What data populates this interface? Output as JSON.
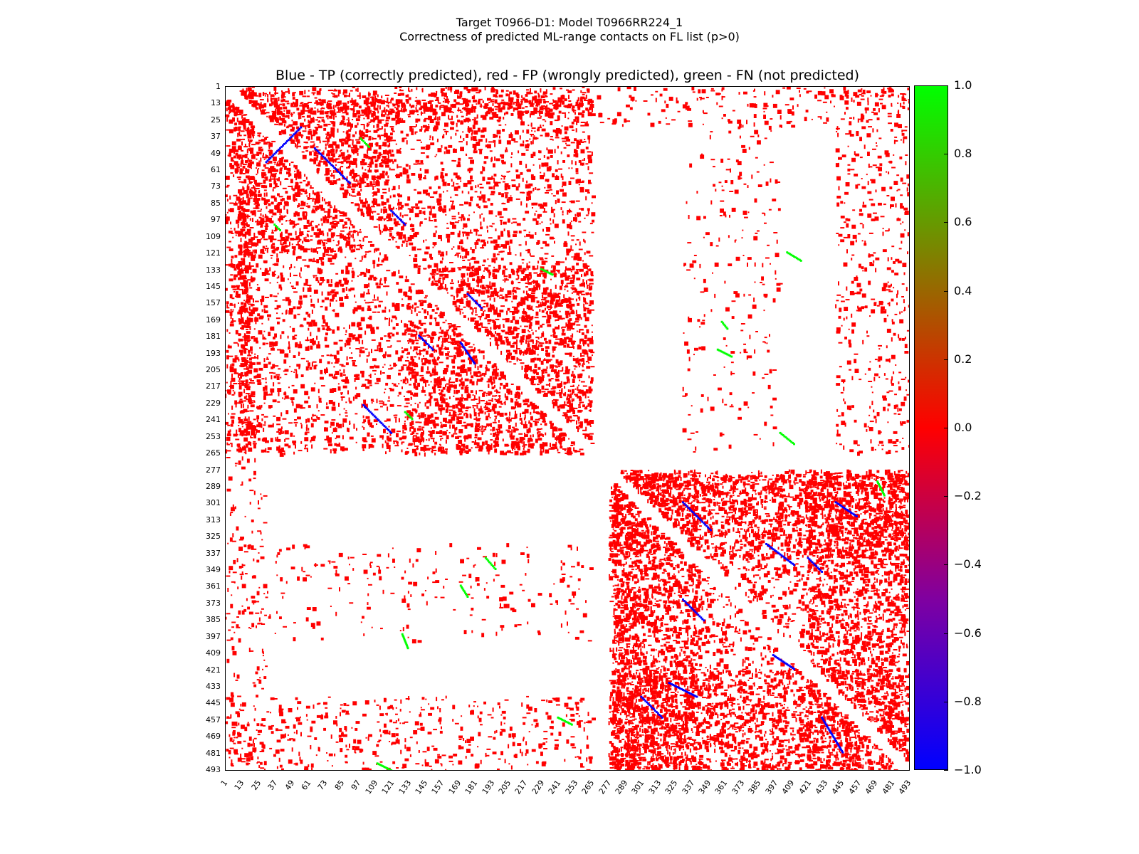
{
  "header": {
    "line1": "Target T0966-D1: Model T0966RR224_1",
    "line2": "Correctness of predicted ML-range contacts on FL list (p>0)"
  },
  "chart_data": {
    "type": "heatmap",
    "title": "Blue - TP (correctly predicted), red - FP (wrongly predicted), green - FN (not predicted)",
    "n_residues": 493,
    "tick_labels": [
      "1",
      "13",
      "25",
      "37",
      "49",
      "61",
      "73",
      "85",
      "97",
      "109",
      "121",
      "133",
      "145",
      "157",
      "169",
      "181",
      "193",
      "205",
      "217",
      "229",
      "241",
      "253",
      "265",
      "277",
      "289",
      "301",
      "313",
      "325",
      "337",
      "349",
      "361",
      "373",
      "385",
      "397",
      "409",
      "421",
      "433",
      "445",
      "457",
      "469",
      "481",
      "493"
    ],
    "colorbar": {
      "ticks": [
        "1.0",
        "0.8",
        "0.6",
        "0.4",
        "0.2",
        "0.0",
        "−0.2",
        "−0.4",
        "−0.6",
        "−0.8",
        "−1.0"
      ],
      "range": [
        -1.0,
        1.0
      ],
      "colors": {
        "tp": "#0000ff",
        "fp": "#ff0000",
        "fn": "#00ff00"
      }
    },
    "fp_regions": [
      [
        1,
        265,
        1,
        265,
        0.35
      ],
      [
        20,
        120,
        20,
        120,
        0.45
      ],
      [
        130,
        265,
        130,
        265,
        0.5
      ],
      [
        277,
        493,
        277,
        493,
        0.4
      ],
      [
        280,
        300,
        277,
        493,
        0.75
      ],
      [
        277,
        493,
        280,
        300,
        0.75
      ],
      [
        300,
        340,
        277,
        493,
        0.5
      ],
      [
        277,
        493,
        300,
        340,
        0.5
      ],
      [
        420,
        493,
        277,
        493,
        0.45
      ],
      [
        277,
        493,
        420,
        493,
        0.45
      ],
      [
        1,
        30,
        1,
        493,
        0.15
      ],
      [
        1,
        493,
        1,
        30,
        0.15
      ],
      [
        440,
        493,
        1,
        265,
        0.2
      ],
      [
        1,
        265,
        440,
        493,
        0.2
      ],
      [
        330,
        400,
        1,
        265,
        0.08
      ],
      [
        1,
        265,
        330,
        400,
        0.08
      ],
      [
        10,
        20,
        1,
        265,
        0.8
      ],
      [
        1,
        265,
        10,
        20,
        0.8
      ]
    ],
    "tp_segments": [
      [
        30,
        55,
        55,
        30
      ],
      [
        45,
        70,
        65,
        90
      ],
      [
        90,
        100,
        120,
        130
      ],
      [
        150,
        160,
        175,
        185
      ],
      [
        180,
        190,
        140,
        150
      ],
      [
        185,
        200,
        170,
        180
      ],
      [
        230,
        250,
        100,
        120
      ],
      [
        300,
        320,
        330,
        350
      ],
      [
        330,
        345,
        390,
        410
      ],
      [
        370,
        385,
        330,
        345
      ],
      [
        430,
        440,
        320,
        340
      ],
      [
        440,
        455,
        300,
        315
      ],
      [
        410,
        420,
        395,
        410
      ],
      [
        455,
        480,
        430,
        445
      ],
      [
        300,
        310,
        440,
        455
      ],
      [
        340,
        350,
        420,
        430
      ]
    ],
    "fn_segments": [
      [
        38,
        44,
        98,
        104
      ],
      [
        100,
        104,
        36,
        40
      ],
      [
        132,
        136,
        228,
        236
      ],
      [
        235,
        240,
        130,
        135
      ],
      [
        170,
        175,
        358,
        362
      ],
      [
        190,
        195,
        355,
        365
      ],
      [
        340,
        348,
        188,
        195
      ],
      [
        360,
        368,
        170,
        175
      ],
      [
        395,
        405,
        128,
        132
      ],
      [
        455,
        460,
        240,
        250
      ],
      [
        488,
        493,
        110,
        120
      ],
      [
        250,
        258,
        400,
        410
      ],
      [
        120,
        126,
        405,
        415
      ],
      [
        285,
        295,
        470,
        475
      ]
    ]
  }
}
